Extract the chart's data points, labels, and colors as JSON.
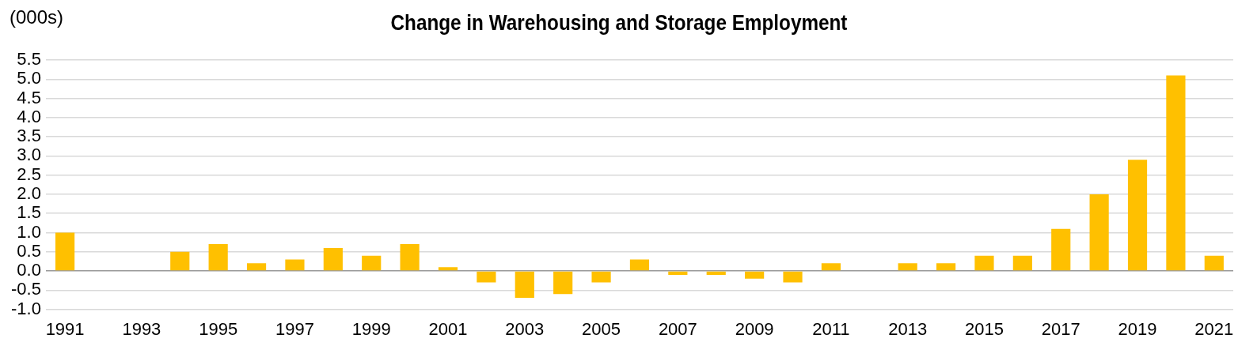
{
  "chart_data": {
    "type": "bar",
    "title": "Change in Warehousing and Storage Employment",
    "ylabel": "(000s)",
    "categories": [
      "1991",
      null,
      "1993",
      null,
      "1995",
      null,
      "1997",
      null,
      "1999",
      null,
      "2001",
      null,
      "2003",
      null,
      "2005",
      null,
      "2007",
      null,
      "2009",
      null,
      "2011",
      null,
      "2013",
      null,
      "2015",
      null,
      "2017",
      null,
      "2019",
      null,
      "2021"
    ],
    "values": [
      1.0,
      0,
      0,
      0.5,
      0.7,
      0.2,
      0.3,
      0.6,
      0.4,
      0.7,
      0.1,
      -0.3,
      -0.7,
      -0.6,
      -0.3,
      0.3,
      -0.1,
      -0.1,
      -0.2,
      -0.3,
      0.2,
      0,
      0.2,
      0.2,
      0.4,
      0.4,
      1.1,
      2.0,
      2.9,
      5.1,
      0.4
    ],
    "color": "#ffc000",
    "ylim": [
      -1.0,
      5.5
    ],
    "yticks": [
      {
        "value": -1.0,
        "label": "-1.0"
      },
      {
        "value": -0.5,
        "label": "-0.5"
      },
      {
        "value": 0,
        "label": "0.0"
      },
      {
        "value": 0.5,
        "label": "0.5"
      },
      {
        "value": 1.0,
        "label": "1.0"
      },
      {
        "value": 1.5,
        "label": "1.5"
      },
      {
        "value": 2.0,
        "label": "2.0"
      },
      {
        "value": 2.5,
        "label": "2.5"
      },
      {
        "value": 3.0,
        "label": "3.0"
      },
      {
        "value": 3.5,
        "label": "3.5"
      },
      {
        "value": 4.0,
        "label": "4.0"
      },
      {
        "value": 4.5,
        "label": "4.5"
      },
      {
        "value": 5.0,
        "label": "5.0"
      },
      {
        "value": 5.5,
        "label": "5.5"
      }
    ],
    "grid": "y",
    "legend": false
  }
}
